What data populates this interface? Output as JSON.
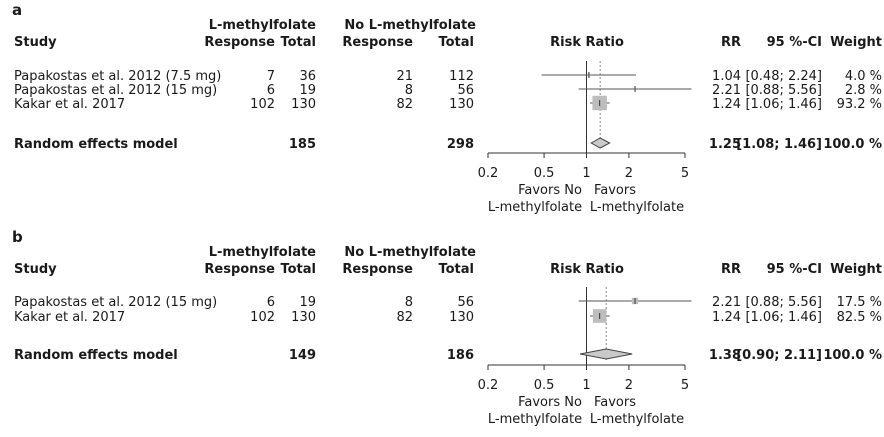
{
  "headers": {
    "study": "Study",
    "group1": "L-methylfolate",
    "group2": "No L-methylfolate",
    "response": "Response",
    "total": "Total",
    "risk_ratio": "Risk Ratio",
    "rr": "RR",
    "ci": "95 %-CI",
    "weight": "Weight"
  },
  "favors": {
    "left_line1": "Favors No",
    "left_line2": "L-methylfolate",
    "right_line1": "Favors",
    "right_line2": "L-methylfolate"
  },
  "colors": {
    "box": "#bdbdbd",
    "diamond_fill": "#c9c9c9",
    "line": "#555555",
    "dotted": "#888888"
  },
  "chart_data": [
    {
      "type": "forest",
      "panel": "a",
      "scale": "log",
      "xlim": [
        0.2,
        5
      ],
      "ticks": [
        "0.2",
        "0.5",
        "1",
        "2",
        "5"
      ],
      "tick_values": [
        0.2,
        0.5,
        1,
        2,
        5
      ],
      "studies": [
        {
          "name": "Papakostas et al. 2012 (7.5 mg)",
          "e_resp": "7",
          "e_total": "36",
          "c_resp": "21",
          "c_total": "112",
          "rr": 1.04,
          "lo": 0.48,
          "hi": 2.24,
          "rr_text": "1.04",
          "ci_text": "[0.48; 2.24]",
          "weight": 4.0,
          "weight_text": "4.0 %"
        },
        {
          "name": "Papakostas et al. 2012 (15 mg)",
          "e_resp": "6",
          "e_total": "19",
          "c_resp": "8",
          "c_total": "56",
          "rr": 2.21,
          "lo": 0.88,
          "hi": 5.56,
          "rr_text": "2.21",
          "ci_text": "[0.88; 5.56]",
          "weight": 2.8,
          "weight_text": "2.8 %"
        },
        {
          "name": "Kakar et al. 2017",
          "e_resp": "102",
          "e_total": "130",
          "c_resp": "82",
          "c_total": "130",
          "rr": 1.24,
          "lo": 1.06,
          "hi": 1.46,
          "rr_text": "1.24",
          "ci_text": "[1.06; 1.46]",
          "weight": 93.2,
          "weight_text": "93.2 %"
        }
      ],
      "pooled": {
        "name": "Random effects model",
        "e_total": "185",
        "c_total": "298",
        "rr": 1.25,
        "lo": 1.08,
        "hi": 1.46,
        "rr_text": "1.25",
        "ci_text": "[1.08; 1.46]",
        "weight_text": "100.0 %"
      }
    },
    {
      "type": "forest",
      "panel": "b",
      "scale": "log",
      "xlim": [
        0.2,
        5
      ],
      "ticks": [
        "0.2",
        "0.5",
        "1",
        "2",
        "5"
      ],
      "tick_values": [
        0.2,
        0.5,
        1,
        2,
        5
      ],
      "studies": [
        {
          "name": "Papakostas et al. 2012 (15 mg)",
          "e_resp": "6",
          "e_total": "19",
          "c_resp": "8",
          "c_total": "56",
          "rr": 2.21,
          "lo": 0.88,
          "hi": 5.56,
          "rr_text": "2.21",
          "ci_text": "[0.88; 5.56]",
          "weight": 17.5,
          "weight_text": "17.5 %"
        },
        {
          "name": "Kakar et al. 2017",
          "e_resp": "102",
          "e_total": "130",
          "c_resp": "82",
          "c_total": "130",
          "rr": 1.24,
          "lo": 1.06,
          "hi": 1.46,
          "rr_text": "1.24",
          "ci_text": "[1.06; 1.46]",
          "weight": 82.5,
          "weight_text": "82.5 %"
        }
      ],
      "pooled": {
        "name": "Random effects model",
        "e_total": "149",
        "c_total": "186",
        "rr": 1.38,
        "lo": 0.9,
        "hi": 2.11,
        "rr_text": "1.38",
        "ci_text": "[0.90; 2.11]",
        "weight_text": "100.0 %"
      }
    }
  ]
}
